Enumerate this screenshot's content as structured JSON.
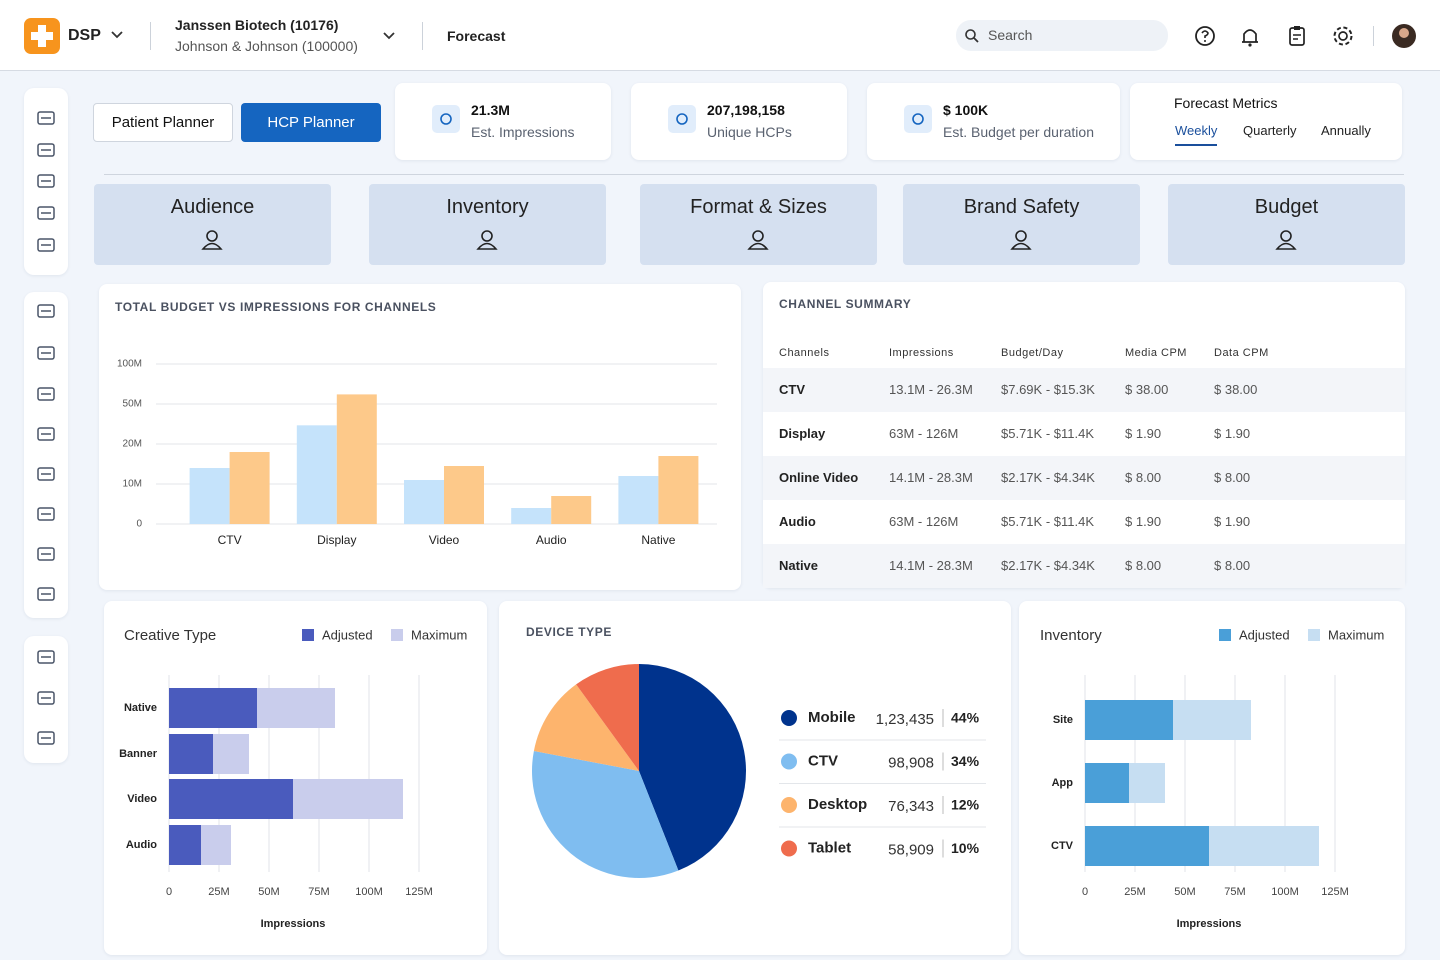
{
  "header": {
    "brand": "DSP",
    "organization": "Janssen Biotech (10176)",
    "parent_organization": "Johnson & Johnson (100000)",
    "page": "Forecast",
    "search_placeholder": "Search"
  },
  "planners": [
    "Patient Planner",
    "HCP Planner"
  ],
  "stats": [
    {
      "value": "21.3M",
      "label": "Est. Impressions"
    },
    {
      "value": "207,198,158",
      "label": "Unique HCPs"
    },
    {
      "value": "$ 100K",
      "label": "Est. Budget per duration"
    }
  ],
  "forecast_metrics": {
    "title": "Forecast Metrics",
    "tabs": [
      "Weekly",
      "Quarterly",
      "Annually"
    ],
    "active": 0
  },
  "steps": [
    "Audience",
    "Inventory",
    "Format & Sizes",
    "Brand Safety",
    "Budget"
  ],
  "channel_summary": {
    "title": "CHANNEL SUMMARY",
    "columns": [
      "Channels",
      "Impressions",
      "Budget/Day",
      "Media CPM",
      "Data CPM"
    ],
    "rows": [
      [
        "CTV",
        "13.1M - 26.3M",
        "$7.69K - $15.3K",
        "$ 38.00",
        "$ 38.00"
      ],
      [
        "Display",
        "63M - 126M",
        "$5.71K - $11.4K",
        "$ 1.90",
        "$ 1.90"
      ],
      [
        "Online Video",
        "14.1M - 28.3M",
        "$2.17K - $4.34K",
        "$ 8.00",
        "$ 8.00"
      ],
      [
        "Audio",
        "63M - 126M",
        "$5.71K - $11.4K",
        "$ 1.90",
        "$ 1.90"
      ],
      [
        "Native",
        "14.1M - 28.3M",
        "$2.17K - $4.34K",
        "$ 8.00",
        "$ 8.00"
      ]
    ]
  },
  "chart_data": [
    {
      "type": "bar",
      "title": "TOTAL BUDGET VS IMPRESSIONS FOR CHANNELS",
      "categories": [
        "CTV",
        "Display",
        "Video",
        "Audio",
        "Native"
      ],
      "series": [
        {
          "color": "#c5e3fb",
          "values": [
            14000000,
            34000000,
            11000000,
            4000000,
            12000000
          ]
        },
        {
          "color": "#fdc98a",
          "values": [
            18000000,
            62000000,
            14500000,
            7000000,
            17000000
          ]
        }
      ],
      "ylim": [
        0,
        100000000
      ],
      "yticks": [
        0,
        {
          "value": 10000000,
          "label": "10M"
        },
        {
          "value": 20000000,
          "label": "20M"
        },
        {
          "value": 50000000,
          "label": "50M"
        },
        {
          "value": 100000000,
          "label": "100M"
        }
      ],
      "grid": true
    },
    {
      "type": "hbar",
      "title": "Creative Type",
      "categories": [
        "Native",
        "Banner",
        "Video",
        "Audio"
      ],
      "series": [
        {
          "name": "Adjusted",
          "color": "#4a5bbd",
          "values": [
            44000000,
            22000000,
            62000000,
            16000000
          ]
        },
        {
          "name": "Maximum",
          "color": "#c9cdec",
          "values": [
            83000000,
            40000000,
            117000000,
            31000000
          ]
        }
      ],
      "xlabel": "Impressions",
      "xlim": [
        0,
        125000000
      ],
      "xticks": [
        0,
        {
          "value": 25000000,
          "label": "25M"
        },
        {
          "value": 50000000,
          "label": "50M"
        },
        {
          "value": 75000000,
          "label": "75M"
        },
        {
          "value": 100000000,
          "label": "100M"
        },
        {
          "value": 125000000,
          "label": "125M"
        }
      ],
      "grid": true
    },
    {
      "type": "pie",
      "title": "DEVICE TYPE",
      "categories": [
        "Mobile",
        "CTV",
        "Desktop",
        "Tablet"
      ],
      "values": [
        44,
        34,
        12,
        10
      ],
      "value_labels": [
        "44%",
        "34%",
        "12%",
        "10%"
      ],
      "counts": [
        "1,23,435",
        "98,908",
        "76,343",
        "58,909"
      ],
      "colors": [
        "#00338d",
        "#7fbdf0",
        "#fdb46d",
        "#ef6c4d"
      ]
    },
    {
      "type": "hbar",
      "title": "Inventory",
      "categories": [
        "Site",
        "App",
        "CTV"
      ],
      "series": [
        {
          "name": "Adjusted",
          "color": "#4a9fd8",
          "values": [
            44000000,
            22000000,
            62000000
          ]
        },
        {
          "name": "Maximum",
          "color": "#c6def2",
          "values": [
            83000000,
            40000000,
            117000000
          ]
        }
      ],
      "xlabel": "Impressions",
      "xlim": [
        0,
        125000000
      ],
      "xticks": [
        0,
        {
          "value": 25000000,
          "label": "25M"
        },
        {
          "value": 50000000,
          "label": "50M"
        },
        {
          "value": 75000000,
          "label": "75M"
        },
        {
          "value": 100000000,
          "label": "100M"
        },
        {
          "value": 125000000,
          "label": "125M"
        }
      ],
      "grid": true
    }
  ]
}
